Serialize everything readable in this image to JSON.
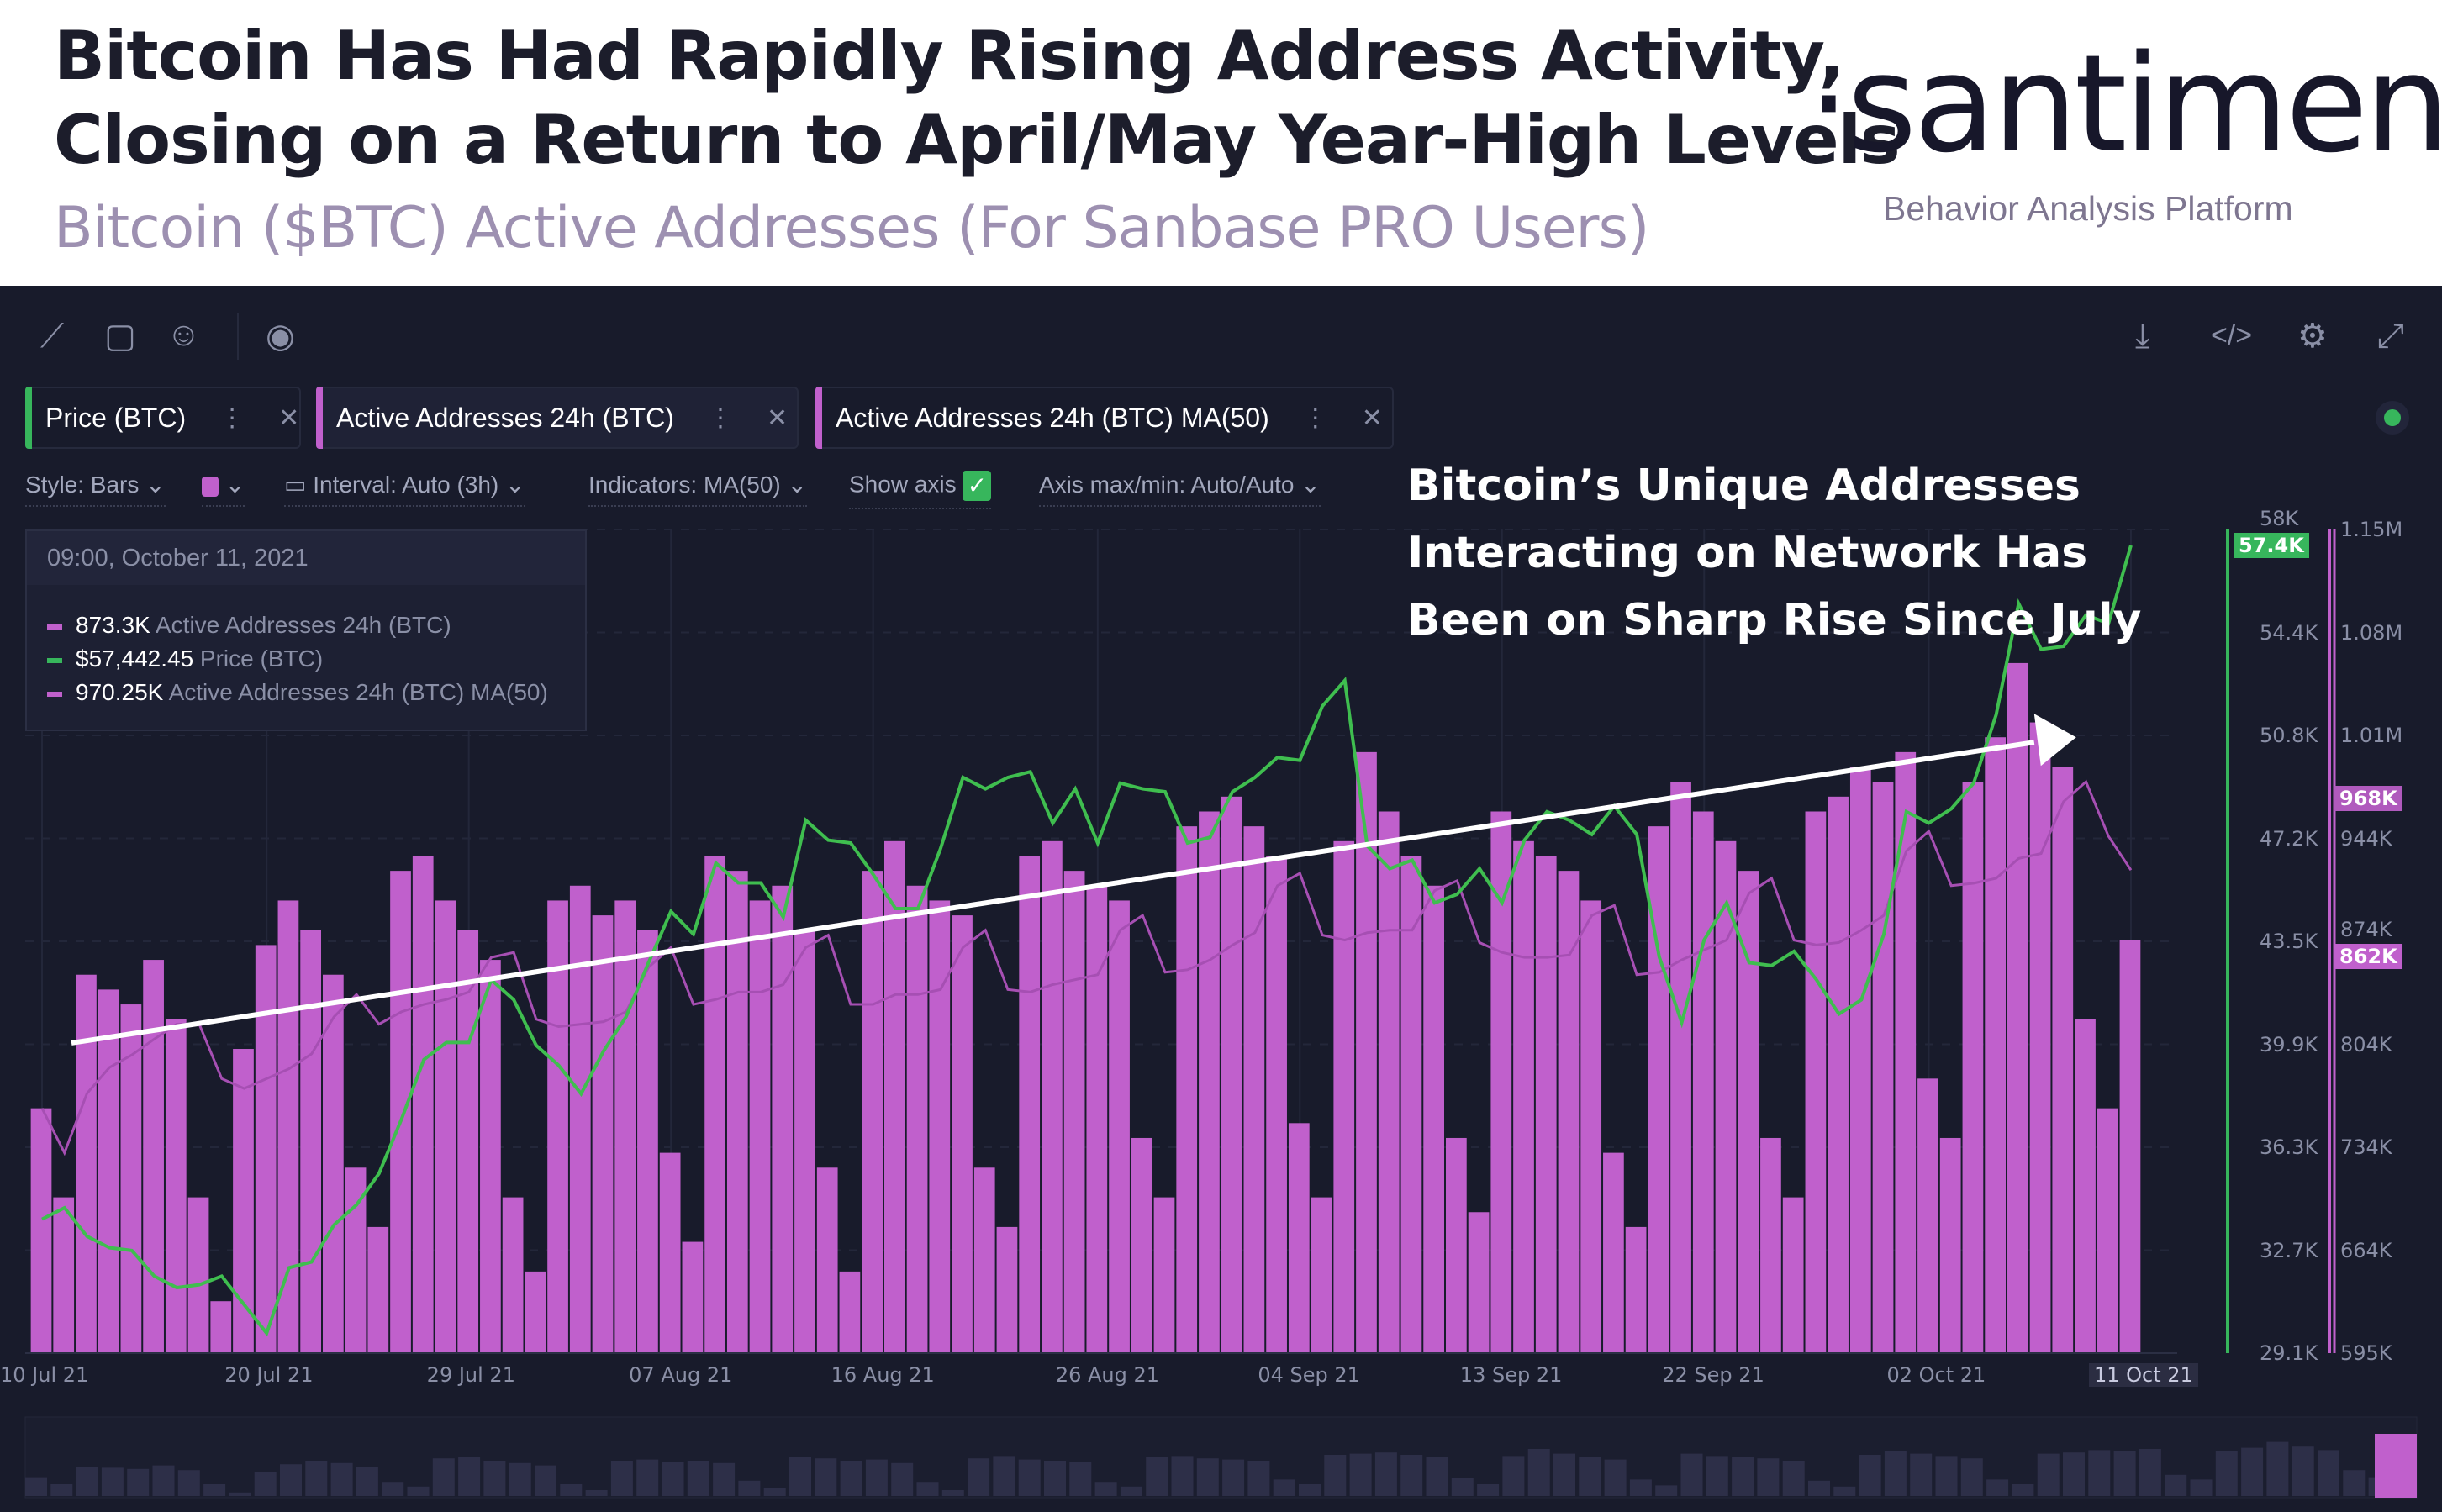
{
  "header": {
    "title_line1": "Bitcoin Has Had Rapidly Rising Address Activity,",
    "title_line2": "Closing on a Return to April/May Year-High Levels",
    "subtitle": "Bitcoin ($BTC) Active Addresses (For Sanbase PRO Users)",
    "logo": "·santiment·",
    "tagline": "Behavior Analysis Platform"
  },
  "toolbar": {
    "left_icons": [
      "line-tool-icon",
      "note-icon",
      "emoji-icon",
      "eye-icon"
    ],
    "right_icons": [
      "download-icon",
      "embed-code-icon",
      "settings-icon",
      "fullscreen-icon"
    ]
  },
  "tabs": [
    {
      "label": "Price (BTC)",
      "color": "#37b65c"
    },
    {
      "label": "Active Addresses 24h (BTC)",
      "color": "#c060cc"
    },
    {
      "label": "Active Addresses 24h (BTC) MA(50)",
      "color": "#c060cc"
    }
  ],
  "options": {
    "style": "Style: Bars",
    "interval": "Interval: Auto (3h)",
    "indicators": "Indicators: MA(50)",
    "show_axis": "Show axis",
    "show_axis_checked": true,
    "axis_minmax": "Axis max/min: Auto/Auto",
    "series_color": "#c060cc"
  },
  "tooltip": {
    "date": "09:00, October 11, 2021",
    "rows": [
      {
        "value": "873.3K",
        "label": "Active Addresses 24h (BTC)",
        "color": "#c060cc"
      },
      {
        "value": "$57,442.45",
        "label": "Price (BTC)",
        "color": "#37b65c"
      },
      {
        "value": "970.25K",
        "label": "Active Addresses 24h (BTC) MA(50)",
        "color": "#c060cc"
      }
    ]
  },
  "annotation": {
    "line1": "Bitcoin’s Unique Addresses",
    "line2": "Interacting on Network Has",
    "line3": "Been on Sharp Rise Since July"
  },
  "chart_data": {
    "type": "bar+line",
    "x_start": "2021-07-10",
    "x_end": "2021-10-11",
    "x_step": "1 day",
    "x_tick_labels": [
      "10 Jul 21",
      "20 Jul 21",
      "29 Jul 21",
      "07 Aug 21",
      "16 Aug 21",
      "26 Aug 21",
      "04 Sep 21",
      "13 Sep 21",
      "22 Sep 21",
      "02 Oct 21",
      "11 Oct 21"
    ],
    "x_tick_day_index": [
      0,
      10,
      19,
      28,
      37,
      47,
      56,
      65,
      74,
      84,
      93
    ],
    "price_axis": {
      "ticks": [
        "58K",
        "54.4K",
        "50.8K",
        "47.2K",
        "43.5K",
        "39.9K",
        "36.3K",
        "32.7K",
        "29.1K"
      ],
      "range": [
        29.1,
        58
      ],
      "unit": "K USD",
      "current_label": "57.4K"
    },
    "aa_axis": {
      "ticks": [
        "1.15M",
        "1.08M",
        "1.01M",
        "944K",
        "874K",
        "804K",
        "734K",
        "664K",
        "595K"
      ],
      "range": [
        595,
        1150
      ],
      "unit": "K",
      "current_label": "862K",
      "ma_label": "968K"
    },
    "series": [
      {
        "name": "Active Addresses 24h (BTC)",
        "type": "bar",
        "color": "#c060cc",
        "values": [
          760,
          700,
          850,
          840,
          830,
          860,
          820,
          700,
          630,
          800,
          870,
          900,
          880,
          850,
          720,
          680,
          920,
          930,
          900,
          880,
          860,
          700,
          650,
          900,
          910,
          890,
          900,
          880,
          730,
          670,
          930,
          920,
          900,
          910,
          880,
          720,
          650,
          920,
          940,
          910,
          900,
          890,
          720,
          680,
          930,
          940,
          920,
          910,
          900,
          740,
          700,
          950,
          960,
          970,
          950,
          930,
          750,
          700,
          940,
          1000,
          960,
          930,
          910,
          740,
          690,
          960,
          940,
          930,
          920,
          900,
          730,
          680,
          950,
          980,
          960,
          940,
          920,
          740,
          700,
          960,
          970,
          990,
          980,
          1000,
          780,
          740,
          980,
          1010,
          1060,
          1020,
          990,
          820,
          760,
          873.3
        ]
      },
      {
        "name": "Price (BTC)",
        "type": "line",
        "color": "#3fbe4f",
        "values": [
          33.8,
          34.2,
          33.2,
          32.8,
          32.7,
          31.8,
          31.4,
          31.5,
          31.8,
          30.8,
          29.8,
          32.1,
          32.3,
          33.6,
          34.3,
          35.4,
          37.3,
          39.4,
          40.0,
          40.0,
          42.2,
          41.5,
          39.9,
          39.2,
          38.2,
          39.7,
          40.9,
          42.8,
          44.6,
          43.8,
          46.3,
          45.6,
          45.6,
          44.4,
          47.8,
          47.1,
          47.0,
          45.9,
          44.7,
          44.7,
          46.8,
          49.3,
          48.9,
          49.3,
          49.5,
          47.7,
          48.9,
          47.0,
          49.1,
          48.9,
          48.8,
          47.0,
          47.2,
          48.8,
          49.3,
          50.0,
          49.9,
          51.8,
          52.7,
          46.9,
          46.1,
          46.4,
          44.9,
          45.2,
          46.1,
          44.9,
          47.1,
          48.1,
          47.8,
          47.3,
          48.3,
          47.3,
          43.0,
          40.7,
          43.6,
          44.9,
          42.8,
          42.7,
          43.2,
          42.2,
          41.0,
          41.5,
          43.8,
          48.1,
          47.7,
          48.2,
          49.1,
          51.5,
          55.4,
          53.8,
          53.9,
          55.0,
          54.7,
          57.44
        ]
      },
      {
        "name": "Active Addresses 24h (BTC) MA(50)",
        "type": "line",
        "color": "#c060cc",
        "method": "moving average of Active Addresses"
      }
    ],
    "trend_arrow": {
      "from": "2021-07-10",
      "to": "2021-10-08",
      "from_aa": 804,
      "to_aa": 1010
    }
  }
}
